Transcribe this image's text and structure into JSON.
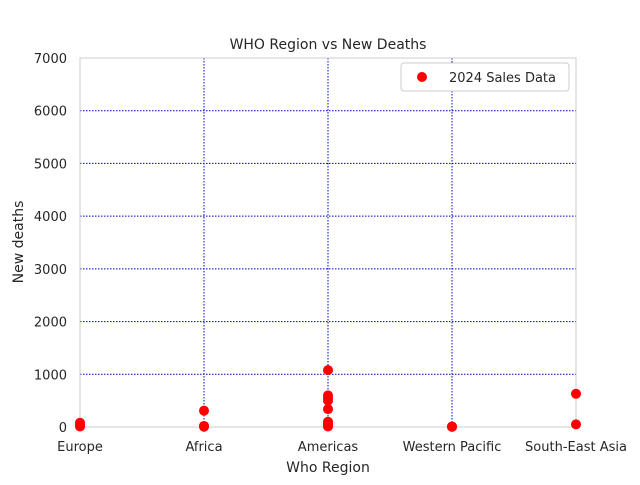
{
  "chart_data": {
    "type": "scatter",
    "title": "WHO Region vs New Deaths",
    "xlabel": "Who Region",
    "ylabel": "New deaths",
    "categories": [
      "Europe",
      "Africa",
      "Americas",
      "Western Pacific",
      "South-East Asia"
    ],
    "ylim": [
      0,
      7000
    ],
    "yticks": [
      0,
      1000,
      2000,
      3000,
      4000,
      5000,
      6000,
      7000
    ],
    "grid": true,
    "grid_color": "#0000cc",
    "point_color": "#ff0000",
    "legend": {
      "placement": "top-right",
      "entries": [
        "2024 Sales Data"
      ]
    },
    "series": [
      {
        "name": "2024 Sales Data",
        "points": [
          {
            "x": "Europe",
            "y": 80
          },
          {
            "x": "Europe",
            "y": 40
          },
          {
            "x": "Europe",
            "y": 10
          },
          {
            "x": "Africa",
            "y": 310
          },
          {
            "x": "Africa",
            "y": 20
          },
          {
            "x": "Africa",
            "y": 5
          },
          {
            "x": "Americas",
            "y": 1080
          },
          {
            "x": "Americas",
            "y": 600
          },
          {
            "x": "Americas",
            "y": 550
          },
          {
            "x": "Americas",
            "y": 500
          },
          {
            "x": "Americas",
            "y": 340
          },
          {
            "x": "Americas",
            "y": 100
          },
          {
            "x": "Americas",
            "y": 60
          },
          {
            "x": "Americas",
            "y": 30
          },
          {
            "x": "Americas",
            "y": 10
          },
          {
            "x": "Western Pacific",
            "y": 10
          },
          {
            "x": "Western Pacific",
            "y": 3
          },
          {
            "x": "South-East Asia",
            "y": 630
          },
          {
            "x": "South-East Asia",
            "y": 50
          }
        ]
      }
    ]
  }
}
